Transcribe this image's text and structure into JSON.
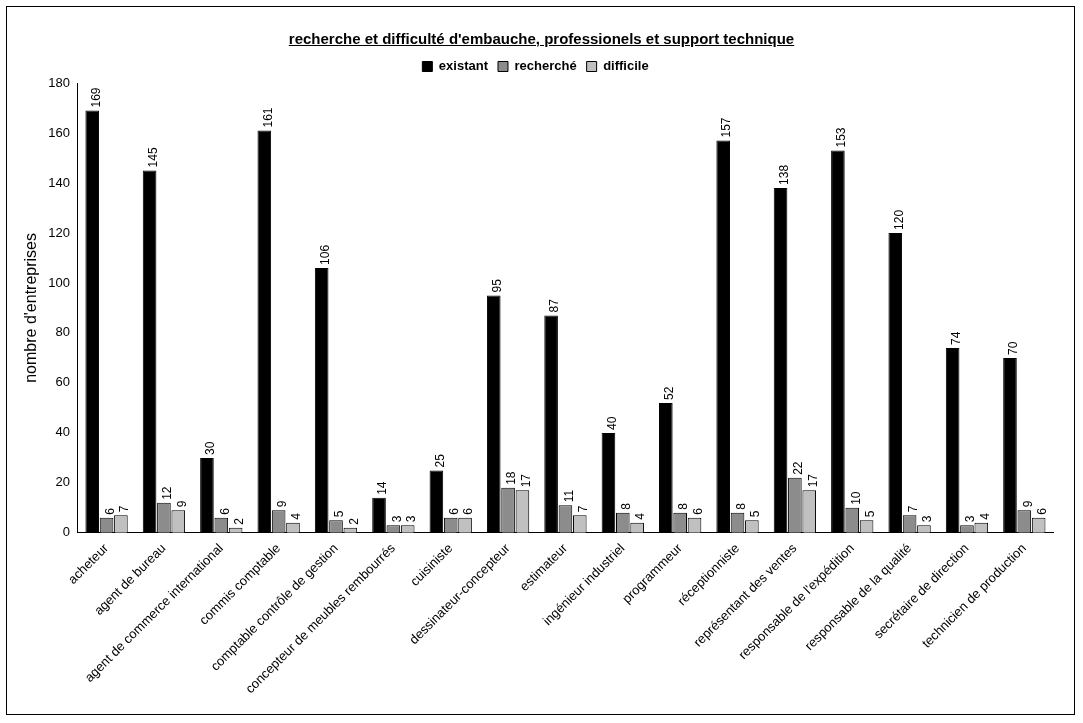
{
  "chart_data": {
    "type": "bar",
    "title": "recherche et difficulté d'embauche, professionels et support technique",
    "ylabel": "nombre d'entreprises",
    "categories": [
      "acheteur",
      "agent de bureau",
      "agent de commerce international",
      "commis comptable",
      "comptable contrôle de gestion",
      "concepteur de meubles rembourrés",
      "cuisiniste",
      "dessinateur-concepteur",
      "estimateur",
      "ingénieur industriel",
      "programmeur",
      "réceptionniste",
      "représentant des ventes",
      "responsable de l'expédition",
      "responsable de la qualité",
      "secrétaire de direction",
      "technicien de production"
    ],
    "series": [
      {
        "name": "existant",
        "color": "#000000",
        "values": [
          169,
          145,
          30,
          161,
          106,
          14,
          25,
          95,
          87,
          40,
          52,
          157,
          138,
          153,
          120,
          74,
          70
        ]
      },
      {
        "name": "recherché",
        "color": "#8c8c8c",
        "values": [
          6,
          12,
          6,
          9,
          5,
          3,
          6,
          18,
          11,
          8,
          8,
          8,
          22,
          10,
          7,
          3,
          9
        ]
      },
      {
        "name": "difficile",
        "color": "#c0c0c0",
        "values": [
          7,
          9,
          2,
          4,
          2,
          3,
          6,
          17,
          7,
          4,
          6,
          5,
          17,
          5,
          3,
          4,
          6
        ]
      }
    ],
    "ylim": [
      0,
      180
    ],
    "yticks": [
      0,
      20,
      40,
      60,
      80,
      100,
      120,
      140,
      160,
      180
    ],
    "grid": false,
    "legend": "top",
    "data_labels": true
  }
}
